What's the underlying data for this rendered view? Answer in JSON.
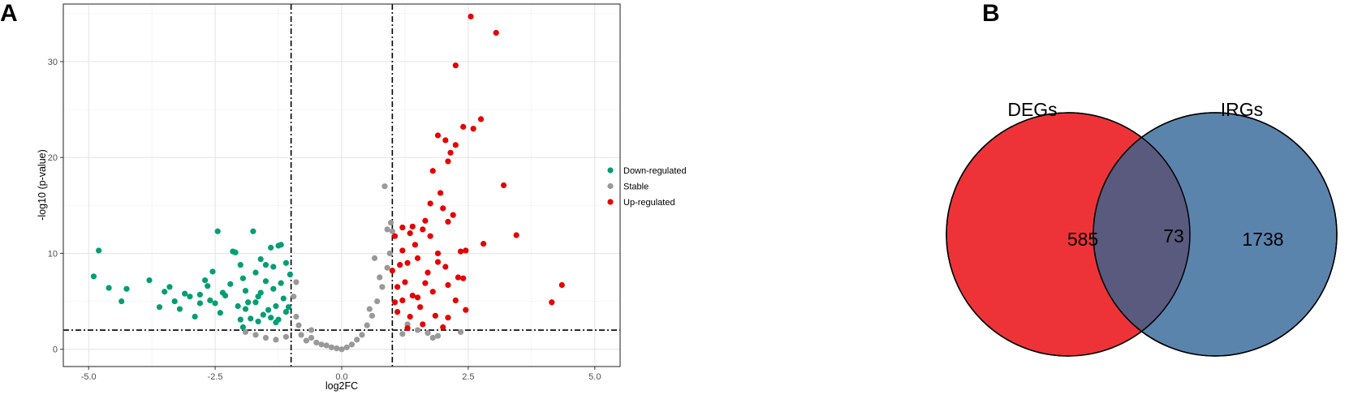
{
  "panels": {
    "a_label": "A",
    "b_label": "B"
  },
  "chart_data": [
    {
      "type": "scatter",
      "title": "",
      "xlabel": "log2FC",
      "ylabel": "-log10 (p-value)",
      "xlim": [
        -5.5,
        5.5
      ],
      "ylim": [
        -1.8,
        36
      ],
      "x_ticks": [
        -5.0,
        -2.5,
        0.0,
        2.5,
        5.0
      ],
      "x_tick_labels": [
        "-5.0",
        "-2.5",
        "0.0",
        "2.5",
        "5.0"
      ],
      "y_ticks": [
        0,
        10,
        20,
        30
      ],
      "y_tick_labels": [
        "0",
        "10",
        "20",
        "30"
      ],
      "grid": true,
      "legend_position": "right",
      "thresholds": {
        "log2fc": [
          -1,
          1
        ],
        "neg_log10_p": 2
      },
      "series": [
        {
          "name": "Down-regulated",
          "color": "#009e73",
          "points": [
            [
              -4.9,
              7.6
            ],
            [
              -4.8,
              10.3
            ],
            [
              -4.6,
              6.4
            ],
            [
              -4.35,
              5.0
            ],
            [
              -4.25,
              6.3
            ],
            [
              -3.8,
              7.2
            ],
            [
              -3.5,
              6.0
            ],
            [
              -3.4,
              6.5
            ],
            [
              -3.3,
              5.0
            ],
            [
              -3.2,
              4.2
            ],
            [
              -3.1,
              5.8
            ],
            [
              -3.0,
              5.5
            ],
            [
              -2.9,
              3.4
            ],
            [
              -2.8,
              4.8
            ],
            [
              -2.7,
              7.2
            ],
            [
              -2.65,
              6.6
            ],
            [
              -2.6,
              5.1
            ],
            [
              -2.5,
              4.8
            ],
            [
              -2.45,
              12.3
            ],
            [
              -2.4,
              3.8
            ],
            [
              -2.3,
              5.6
            ],
            [
              -2.2,
              6.8
            ],
            [
              -2.15,
              10.2
            ],
            [
              -2.1,
              10.1
            ],
            [
              -2.05,
              4.5
            ],
            [
              -2.0,
              8.8
            ],
            [
              -1.95,
              2.3
            ],
            [
              -1.9,
              6.1
            ],
            [
              -1.85,
              4.9
            ],
            [
              -1.8,
              3.2
            ],
            [
              -1.75,
              12.3
            ],
            [
              -1.7,
              8.0
            ],
            [
              -1.65,
              5.5
            ],
            [
              -1.6,
              9.4
            ],
            [
              -1.55,
              3.6
            ],
            [
              -1.5,
              7.1
            ],
            [
              -1.45,
              4.1
            ],
            [
              -1.4,
              10.6
            ],
            [
              -1.35,
              6.3
            ],
            [
              -1.3,
              2.8
            ],
            [
              -1.25,
              10.8
            ],
            [
              -1.2,
              10.9
            ],
            [
              -1.15,
              5.3
            ],
            [
              -1.1,
              9.0
            ],
            [
              -1.05,
              4.4
            ],
            [
              -1.02,
              7.8
            ],
            [
              -1.3,
              4.5
            ],
            [
              -1.4,
              3.3
            ],
            [
              -1.2,
              6.9
            ],
            [
              -1.6,
              5.9
            ],
            [
              -2.0,
              3.1
            ],
            [
              -2.35,
              5.9
            ],
            [
              -3.6,
              4.4
            ],
            [
              -1.7,
              4.9
            ],
            [
              -1.1,
              3.9
            ],
            [
              -1.5,
              8.8
            ],
            [
              -2.8,
              5.7
            ],
            [
              -1.95,
              7.4
            ],
            [
              -1.25,
              3.1
            ],
            [
              -1.35,
              8.6
            ],
            [
              -2.55,
              8.1
            ],
            [
              -1.65,
              2.9
            ],
            [
              -1.9,
              4.2
            ]
          ]
        },
        {
          "name": "Stable",
          "color": "#999999",
          "points": [
            [
              -1.9,
              1.8
            ],
            [
              -1.7,
              1.5
            ],
            [
              -1.5,
              1.2
            ],
            [
              -1.3,
              1.0
            ],
            [
              -1.1,
              1.3
            ],
            [
              -0.9,
              3.4
            ],
            [
              -0.8,
              1.5
            ],
            [
              -0.7,
              0.9
            ],
            [
              -0.6,
              1.2
            ],
            [
              -0.5,
              0.7
            ],
            [
              -0.4,
              0.5
            ],
            [
              -0.3,
              0.4
            ],
            [
              -0.2,
              0.2
            ],
            [
              -0.1,
              0.1
            ],
            [
              0.0,
              0.0
            ],
            [
              0.1,
              0.2
            ],
            [
              0.2,
              0.5
            ],
            [
              0.3,
              1.0
            ],
            [
              0.4,
              1.5
            ],
            [
              0.5,
              2.5
            ],
            [
              0.6,
              3.5
            ],
            [
              0.7,
              5.0
            ],
            [
              0.8,
              6.5
            ],
            [
              0.9,
              8.5
            ],
            [
              0.95,
              10.0
            ],
            [
              0.85,
              17.0
            ],
            [
              0.65,
              9.5
            ],
            [
              1.0,
              12.3
            ],
            [
              1.3,
              2.6
            ],
            [
              1.5,
              2.0
            ],
            [
              1.7,
              1.7
            ],
            [
              1.8,
              1.2
            ],
            [
              1.9,
              1.4
            ],
            [
              2.35,
              1.8
            ],
            [
              -0.95,
              5.5
            ],
            [
              -0.9,
              7.0
            ],
            [
              -0.85,
              2.5
            ],
            [
              -0.6,
              2.0
            ],
            [
              0.55,
              4.2
            ],
            [
              0.75,
              7.5
            ],
            [
              0.9,
              12.5
            ],
            [
              0.97,
              13.2
            ],
            [
              1.2,
              1.6
            ]
          ]
        },
        {
          "name": "Up-regulated",
          "color": "#e60000",
          "points": [
            [
              2.55,
              34.7
            ],
            [
              3.05,
              33.0
            ],
            [
              2.25,
              29.6
            ],
            [
              2.75,
              24.0
            ],
            [
              2.6,
              23.0
            ],
            [
              2.4,
              23.2
            ],
            [
              1.9,
              22.3
            ],
            [
              2.05,
              21.8
            ],
            [
              2.25,
              21.3
            ],
            [
              2.15,
              20.5
            ],
            [
              2.1,
              19.6
            ],
            [
              1.8,
              18.6
            ],
            [
              3.2,
              17.1
            ],
            [
              1.95,
              16.3
            ],
            [
              1.75,
              15.2
            ],
            [
              2.0,
              14.7
            ],
            [
              2.2,
              14.0
            ],
            [
              2.1,
              13.3
            ],
            [
              1.6,
              12.5
            ],
            [
              1.4,
              12.8
            ],
            [
              1.2,
              12.7
            ],
            [
              1.05,
              11.8
            ],
            [
              3.45,
              11.9
            ],
            [
              2.8,
              11.0
            ],
            [
              2.45,
              10.3
            ],
            [
              2.35,
              10.2
            ],
            [
              1.9,
              10.0
            ],
            [
              1.5,
              9.5
            ],
            [
              1.3,
              9.0
            ],
            [
              1.15,
              8.8
            ],
            [
              1.7,
              8.0
            ],
            [
              2.3,
              7.5
            ],
            [
              2.4,
              7.4
            ],
            [
              2.1,
              6.7
            ],
            [
              1.8,
              6.0
            ],
            [
              1.4,
              5.6
            ],
            [
              1.2,
              5.1
            ],
            [
              1.05,
              4.9
            ],
            [
              4.35,
              6.7
            ],
            [
              4.15,
              4.9
            ],
            [
              2.45,
              4.1
            ],
            [
              2.1,
              3.3
            ],
            [
              1.6,
              2.6
            ],
            [
              1.3,
              2.2
            ],
            [
              1.1,
              3.9
            ],
            [
              2.0,
              2.3
            ],
            [
              1.85,
              3.5
            ],
            [
              1.55,
              4.4
            ],
            [
              1.25,
              7.0
            ],
            [
              1.45,
              10.9
            ],
            [
              1.65,
              6.9
            ],
            [
              1.35,
              3.4
            ],
            [
              1.75,
              11.8
            ],
            [
              1.1,
              6.5
            ],
            [
              2.25,
              5.1
            ],
            [
              1.9,
              9.1
            ],
            [
              1.5,
              5.4
            ],
            [
              1.2,
              10.3
            ],
            [
              1.0,
              8.2
            ],
            [
              1.65,
              13.4
            ],
            [
              1.35,
              12.1
            ],
            [
              2.05,
              8.6
            ]
          ]
        }
      ]
    },
    {
      "type": "venn",
      "sets": [
        {
          "name": "DEGs",
          "color": "#ee3338",
          "only_count": "585"
        },
        {
          "name": "IRGs",
          "color": "#5b84ad",
          "only_count": "1738"
        }
      ],
      "intersection": {
        "count": "73",
        "color": "#5a5a7e"
      }
    }
  ]
}
